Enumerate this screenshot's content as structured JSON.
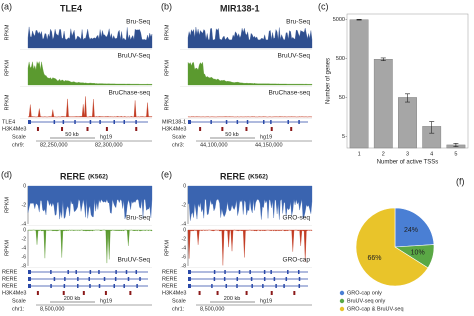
{
  "panels": [
    {
      "label": "(a)",
      "gene": "TLE4",
      "style": "pos",
      "tracks": [
        {
          "name": "Bru-Seq",
          "axis": "RPKM",
          "color": "#2f4f8f",
          "shape": "dense"
        },
        {
          "name": "BruUV-Seq",
          "axis": "RPKM",
          "color": "#5b9a2f",
          "shape": "peak"
        },
        {
          "name": "BruChase-seq",
          "axis": "RPKM",
          "color": "#c23b22",
          "shape": "spikes"
        }
      ],
      "gene_tracks": [
        "TLE4"
      ],
      "mark": "H3K4Me3",
      "scale": "Scale",
      "scale_bar": "50 kb",
      "assembly": "hg19",
      "chrom": "chr9:",
      "positions": [
        "82,250,000",
        "82,300,000"
      ]
    },
    {
      "label": "(b)",
      "gene": "MIR138-1",
      "style": "pos",
      "tracks": [
        {
          "name": "Bru-Seq",
          "axis": "RPKM",
          "color": "#2f4f8f",
          "shape": "dense"
        },
        {
          "name": "BruUV-Seq",
          "axis": "RPKM",
          "color": "#5b9a2f",
          "shape": "peak"
        },
        {
          "name": "BruChase-seq",
          "axis": "RPKM",
          "color": "#c23b22",
          "shape": "flat"
        }
      ],
      "gene_tracks": [
        "MIR138-1"
      ],
      "mark": "H3K4Me3",
      "scale": "Scale",
      "scale_bar": "50 kb",
      "assembly": "hg19",
      "chrom": "chr3:",
      "positions": [
        "44,100,000",
        "44,150,000"
      ]
    },
    {
      "label": "(d)",
      "gene": "RERE",
      "cell": "(K562)",
      "style": "neg",
      "tracks": [
        {
          "name": "Bru-Seq",
          "axis": "RPKM",
          "color": "#3a64b0",
          "shape": "dense",
          "ticks": [
            "0",
            "-2",
            "-4"
          ]
        },
        {
          "name": "BruUV-Seq",
          "axis": "RPKM",
          "color": "#5b9a2f",
          "shape": "spikes",
          "ticks": [
            "0",
            "-2",
            "-4",
            "-6",
            "-8"
          ]
        }
      ],
      "gene_tracks": [
        "RERE",
        "RERE",
        "RERE"
      ],
      "mark": "H3K4Me3",
      "scale": "Scale",
      "scale_bar": "200 kb",
      "assembly": "hg19",
      "chrom": "chr1:",
      "positions": [
        "8,500,000"
      ]
    },
    {
      "label": "(e)",
      "gene": "RERE",
      "cell": "(K562)",
      "style": "neg",
      "tracks": [
        {
          "name": "GRO-seq",
          "color": "#3a64b0",
          "shape": "dense",
          "ticks": [
            "0",
            "-2",
            "-4"
          ]
        },
        {
          "name": "GRO-cap",
          "axis": "RPKM",
          "color": "#c23b22",
          "shape": "spikes",
          "ticks": [
            "0",
            "-2",
            "-4",
            "-6",
            "-8"
          ]
        }
      ],
      "gene_tracks": [
        "RERE",
        "RERE",
        "RERE"
      ],
      "mark": "H3K4Me3",
      "scale": "Scale",
      "scale_bar": "200 kb",
      "assembly": "hg19",
      "chrom": "chr1:",
      "positions": [
        "8,500,000"
      ]
    }
  ],
  "chart_data": [
    {
      "type": "bar",
      "panel_label": "(c)",
      "x_label": "Number of active TSSs",
      "y_label": "Number of genes",
      "categories": [
        "1",
        "2",
        "3",
        "4",
        "5"
      ],
      "values": [
        5000,
        480,
        50,
        9,
        3
      ],
      "errors": [
        100,
        40,
        12,
        3,
        0.3
      ],
      "color": "#a6a6a6",
      "ylim": [
        2.5,
        7000
      ],
      "yticks": [
        5,
        50,
        500,
        5000
      ],
      "log_scale": true
    },
    {
      "type": "pie",
      "panel_label": "(f)",
      "categories": [
        "GRO-cap only",
        "BruUV-seq only",
        "GRO-cap & BruUV-seq"
      ],
      "values": [
        24,
        10,
        66
      ],
      "value_labels": [
        "24%",
        "10%",
        "66%"
      ],
      "colors": [
        "#4a7fd4",
        "#5aa845",
        "#e9c42a"
      ]
    }
  ]
}
